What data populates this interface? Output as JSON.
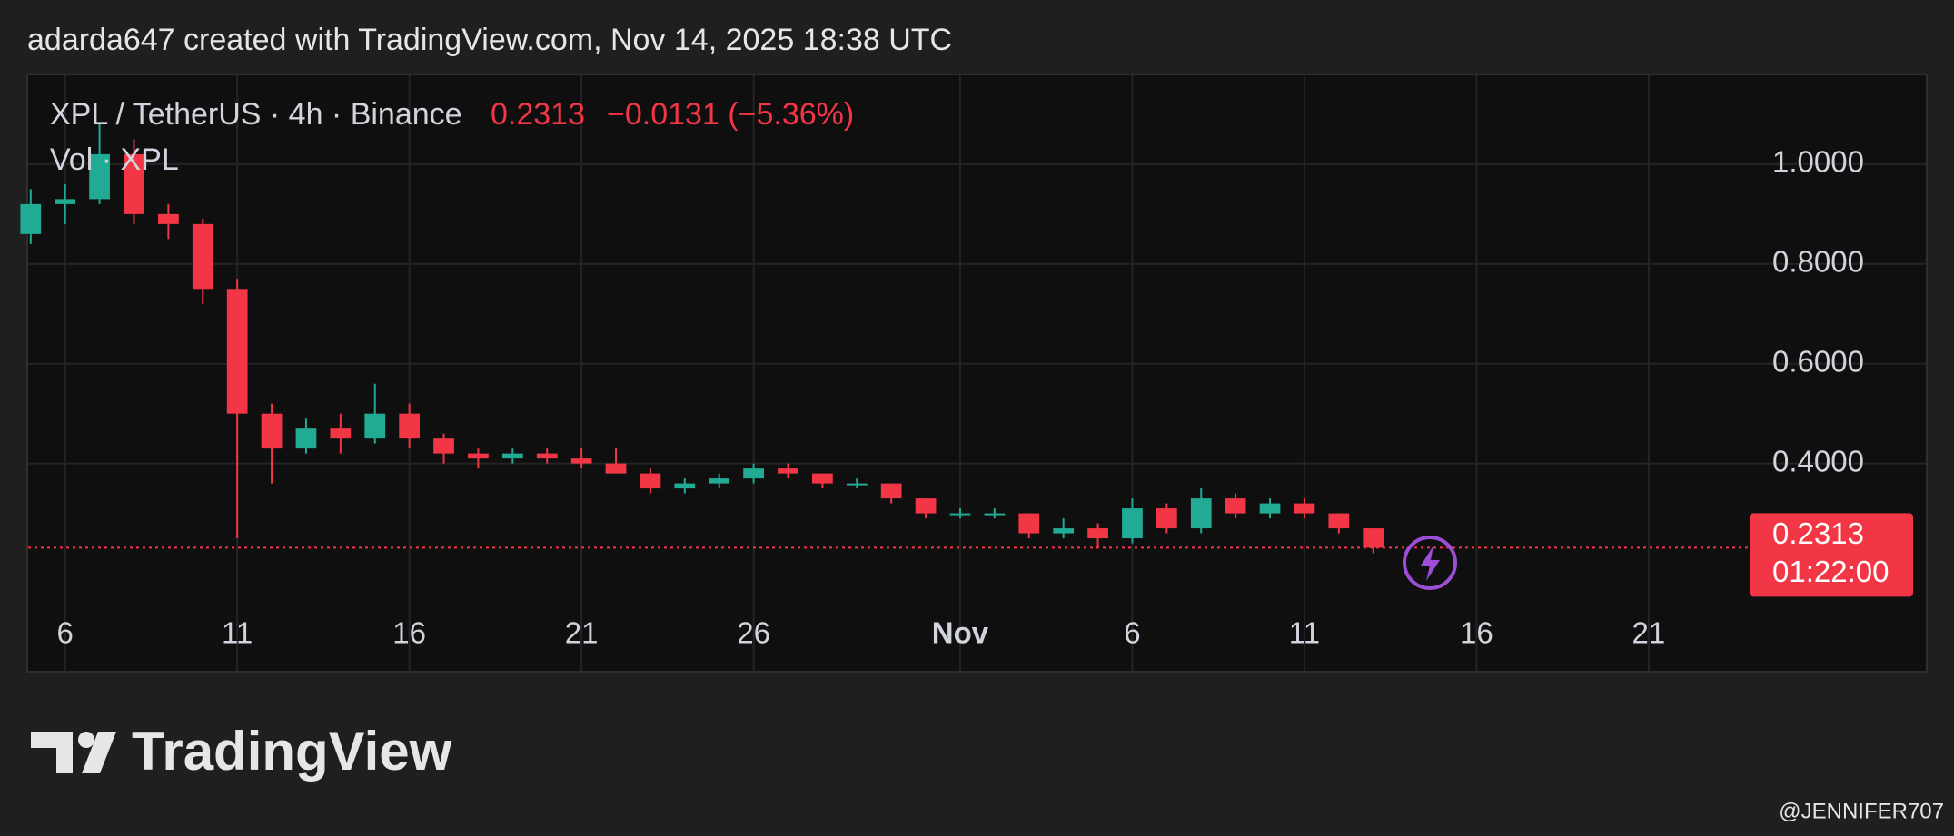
{
  "caption": "adarda647 created with TradingView.com, Nov 14, 2025 18:38 UTC",
  "watermark": "@JENNIFER707",
  "brand": "TradingView",
  "chart_data": {
    "type": "candlestick",
    "symbol": "XPL / TetherUS · 4h · Binance",
    "price": 0.2313,
    "change": "−0.0131 (−5.36%)",
    "volume_legend": "Vol · XPL",
    "countdown": "01:22:00",
    "up_color": "#22ab94",
    "down_color": "#f23645",
    "grid": true,
    "x": [
      5,
      6,
      7,
      8,
      9,
      10,
      11,
      12,
      13,
      14,
      15,
      16,
      17,
      18,
      19,
      20,
      21,
      22,
      23,
      24,
      25,
      26,
      27,
      28,
      29,
      30,
      31,
      32,
      33,
      34,
      35,
      36,
      37,
      38,
      39,
      40,
      41,
      42,
      43,
      44
    ],
    "open": [
      0.86,
      0.92,
      0.93,
      1.02,
      0.9,
      0.88,
      0.75,
      0.5,
      0.43,
      0.47,
      0.45,
      0.5,
      0.45,
      0.42,
      0.41,
      0.42,
      0.41,
      0.4,
      0.38,
      0.35,
      0.36,
      0.37,
      0.39,
      0.38,
      0.36,
      0.36,
      0.33,
      0.3,
      0.3,
      0.3,
      0.26,
      0.27,
      0.25,
      0.31,
      0.27,
      0.33,
      0.3,
      0.32,
      0.3,
      0.27
    ],
    "high": [
      0.95,
      0.96,
      1.08,
      1.05,
      0.92,
      0.89,
      0.77,
      0.52,
      0.49,
      0.5,
      0.56,
      0.52,
      0.46,
      0.43,
      0.43,
      0.43,
      0.43,
      0.43,
      0.39,
      0.37,
      0.38,
      0.4,
      0.4,
      0.38,
      0.37,
      0.36,
      0.33,
      0.31,
      0.31,
      0.3,
      0.29,
      0.28,
      0.33,
      0.32,
      0.35,
      0.34,
      0.33,
      0.33,
      0.3,
      0.27
    ],
    "low": [
      0.84,
      0.88,
      0.92,
      0.88,
      0.85,
      0.72,
      0.25,
      0.36,
      0.42,
      0.42,
      0.44,
      0.43,
      0.4,
      0.39,
      0.4,
      0.4,
      0.39,
      0.38,
      0.34,
      0.34,
      0.35,
      0.36,
      0.37,
      0.35,
      0.35,
      0.32,
      0.29,
      0.29,
      0.29,
      0.25,
      0.25,
      0.23,
      0.24,
      0.26,
      0.26,
      0.29,
      0.29,
      0.29,
      0.26,
      0.22
    ],
    "close": [
      0.92,
      0.93,
      1.02,
      0.9,
      0.88,
      0.75,
      0.5,
      0.43,
      0.47,
      0.45,
      0.5,
      0.45,
      0.42,
      0.41,
      0.42,
      0.41,
      0.4,
      0.38,
      0.35,
      0.36,
      0.37,
      0.39,
      0.38,
      0.36,
      0.36,
      0.33,
      0.3,
      0.3,
      0.3,
      0.26,
      0.27,
      0.25,
      0.31,
      0.27,
      0.33,
      0.3,
      0.32,
      0.3,
      0.27,
      0.2313
    ],
    "xlim": [
      4.9,
      54.8
    ],
    "xticks": [
      6,
      11,
      16,
      21,
      26,
      {
        "value": 32,
        "label": "Nov"
      },
      {
        "value": 37,
        "label": "6"
      },
      {
        "value": 42,
        "label": "11"
      },
      {
        "value": 47,
        "label": "16"
      },
      {
        "value": 52,
        "label": "21"
      }
    ],
    "ylim": [
      0.13,
      1.18
    ],
    "yticks": [
      {
        "value": 0.4,
        "label": "0.4000"
      },
      {
        "value": 0.6,
        "label": "0.6000"
      },
      {
        "value": 0.8,
        "label": "0.8000"
      },
      {
        "value": 1.0,
        "label": "1.0000"
      }
    ]
  }
}
